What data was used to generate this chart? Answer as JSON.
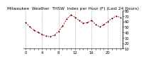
{
  "title": "Milwaukee  Weather  THSW  Index per Hour (F) (Last 24 Hours)",
  "x_values": [
    0,
    1,
    2,
    3,
    4,
    5,
    6,
    7,
    8,
    9,
    10,
    11,
    12,
    13,
    14,
    15,
    16,
    17,
    18,
    19,
    20,
    21,
    22,
    23
  ],
  "y_values": [
    58,
    50,
    44,
    40,
    36,
    33,
    32,
    35,
    42,
    52,
    65,
    72,
    68,
    62,
    57,
    58,
    62,
    55,
    50,
    54,
    60,
    66,
    70,
    68
  ],
  "ylim": [
    10,
    80
  ],
  "yticks": [
    10,
    20,
    30,
    40,
    50,
    60,
    70,
    80
  ],
  "background_color": "#ffffff",
  "line_color": "#cc0000",
  "marker_color": "#000000",
  "grid_color": "#888888",
  "title_color": "#000000",
  "title_fontsize": 4.2,
  "tick_fontsize": 3.8,
  "vgrid_positions": [
    0,
    4,
    8,
    12,
    16,
    20,
    23
  ]
}
